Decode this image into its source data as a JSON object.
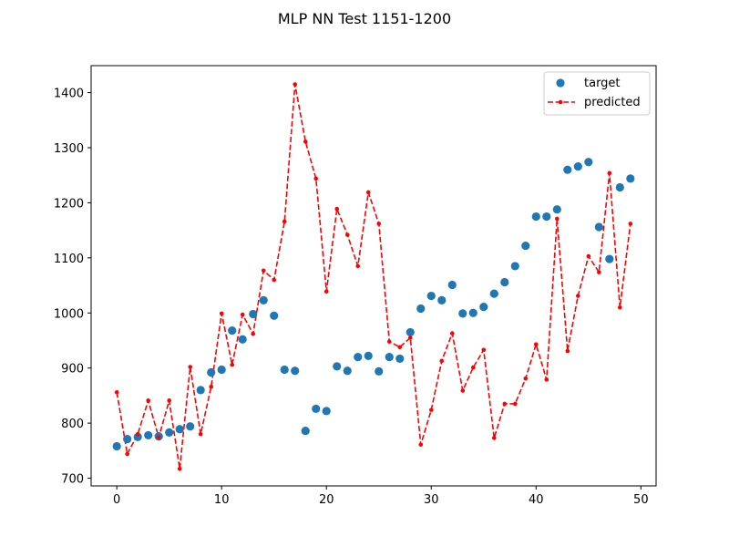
{
  "chart_data": {
    "type": "scatter",
    "title": "MLP NN Test 1151-1200",
    "xlabel": "",
    "ylabel": "",
    "xlim": [
      -2.45,
      51.45
    ],
    "ylim": [
      686,
      1449
    ],
    "xticks": [
      0,
      10,
      20,
      30,
      40,
      50
    ],
    "yticks": [
      700,
      800,
      900,
      1000,
      1100,
      1200,
      1300,
      1400
    ],
    "grid": false,
    "legend_position": "top-right",
    "x": [
      0,
      1,
      2,
      3,
      4,
      5,
      6,
      7,
      8,
      9,
      10,
      11,
      12,
      13,
      14,
      15,
      16,
      17,
      18,
      19,
      20,
      21,
      22,
      23,
      24,
      25,
      26,
      27,
      28,
      29,
      30,
      31,
      32,
      33,
      34,
      35,
      36,
      37,
      38,
      39,
      40,
      41,
      42,
      43,
      44,
      45,
      46,
      47,
      48,
      49
    ],
    "series": [
      {
        "name": "target",
        "style": "markers",
        "color": "#1f77b4",
        "values": [
          758,
          771,
          775,
          778,
          776,
          783,
          789,
          794,
          860,
          892,
          897,
          968,
          952,
          998,
          1023,
          995,
          897,
          895,
          786,
          826,
          822,
          903,
          895,
          920,
          922,
          894,
          920,
          917,
          965,
          1008,
          1031,
          1023,
          1051,
          999,
          1000,
          1011,
          1035,
          1056,
          1085,
          1122,
          1175,
          1175,
          1188,
          1260,
          1266,
          1274,
          1156,
          1098,
          1228,
          1244
        ]
      },
      {
        "name": "predicted",
        "style": "dashed-line-with-dots",
        "color": "#ff0000",
        "values": [
          856,
          744,
          780,
          841,
          774,
          841,
          717,
          902,
          780,
          866,
          999,
          906,
          997,
          962,
          1077,
          1060,
          1166,
          1415,
          1311,
          1244,
          1039,
          1189,
          1142,
          1085,
          1219,
          1162,
          948,
          938,
          955,
          761,
          824,
          913,
          963,
          859,
          901,
          933,
          773,
          835,
          835,
          881,
          943,
          879,
          1171,
          931,
          1031,
          1103,
          1074,
          1254,
          1010,
          1162
        ]
      }
    ]
  }
}
